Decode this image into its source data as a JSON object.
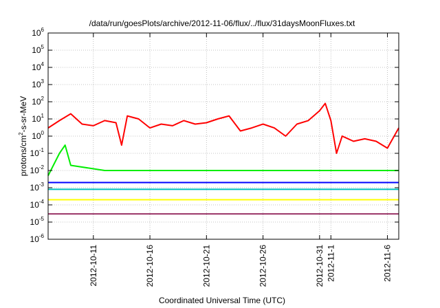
{
  "chart_data": {
    "type": "line",
    "title": "/data/run/goesPlots/archive/2012-11-06/flux/../flux/31daysMoonFluxes.txt",
    "xlabel": "Coordinated Universal Time (UTC)",
    "ylabel": {
      "base": "protons/cm",
      "exp": "2",
      "rest": "-s-sr-MeV"
    },
    "yscale": "log",
    "ylim": [
      1e-06,
      1000000.0
    ],
    "y_ticks": [
      {
        "value": 1e-06,
        "base": "10",
        "exp": "-6"
      },
      {
        "value": 1e-05,
        "base": "10",
        "exp": "-5"
      },
      {
        "value": 0.0001,
        "base": "10",
        "exp": "-4"
      },
      {
        "value": 0.001,
        "base": "10",
        "exp": "-3"
      },
      {
        "value": 0.01,
        "base": "10",
        "exp": "-2"
      },
      {
        "value": 0.1,
        "base": "10",
        "exp": "-1"
      },
      {
        "value": 1,
        "base": "10",
        "exp": "0"
      },
      {
        "value": 10,
        "base": "10",
        "exp": "1"
      },
      {
        "value": 100,
        "base": "10",
        "exp": "2"
      },
      {
        "value": 1000.0,
        "base": "10",
        "exp": "3"
      },
      {
        "value": 10000.0,
        "base": "10",
        "exp": "4"
      },
      {
        "value": 100000.0,
        "base": "10",
        "exp": "5"
      },
      {
        "value": 1000000.0,
        "base": "10",
        "exp": "6"
      }
    ],
    "xlim": [
      "2012-10-07",
      "2012-11-07"
    ],
    "x_ticks": [
      {
        "date": "2012-10-11",
        "label": "2012-10-11"
      },
      {
        "date": "2012-10-16",
        "label": "2012-10-16"
      },
      {
        "date": "2012-10-21",
        "label": "2012-10-21"
      },
      {
        "date": "2012-10-26",
        "label": "2012-10-26"
      },
      {
        "date": "2012-10-31",
        "label": "2012-10-31"
      },
      {
        "date": "2012-11-01",
        "label": "2012-11-1"
      },
      {
        "date": "2012-11-06",
        "label": "2012-11-6"
      }
    ],
    "grid": true,
    "series": [
      {
        "color": "#ff0000",
        "values": [
          [
            "2012-10-07",
            3
          ],
          [
            "2012-10-08",
            8
          ],
          [
            "2012-10-09",
            20
          ],
          [
            "2012-10-10",
            5
          ],
          [
            "2012-10-11",
            4
          ],
          [
            "2012-10-12",
            8
          ],
          [
            "2012-10-13",
            6
          ],
          [
            "2012-10-13.5",
            0.3
          ],
          [
            "2012-10-14",
            15
          ],
          [
            "2012-10-15",
            10
          ],
          [
            "2012-10-16",
            3
          ],
          [
            "2012-10-17",
            5
          ],
          [
            "2012-10-18",
            4
          ],
          [
            "2012-10-19",
            8
          ],
          [
            "2012-10-20",
            5
          ],
          [
            "2012-10-21",
            6
          ],
          [
            "2012-10-22",
            10
          ],
          [
            "2012-10-23",
            15
          ],
          [
            "2012-10-24",
            2
          ],
          [
            "2012-10-25",
            3
          ],
          [
            "2012-10-26",
            5
          ],
          [
            "2012-10-27",
            3
          ],
          [
            "2012-10-28",
            1
          ],
          [
            "2012-10-29",
            5
          ],
          [
            "2012-10-30",
            8
          ],
          [
            "2012-10-31",
            30
          ],
          [
            "2012-10-31.5",
            80
          ],
          [
            "2012-11-01",
            8
          ],
          [
            "2012-11-01.5",
            0.1
          ],
          [
            "2012-11-02",
            1
          ],
          [
            "2012-11-03",
            0.5
          ],
          [
            "2012-11-04",
            0.7
          ],
          [
            "2012-11-05",
            0.5
          ],
          [
            "2012-11-06",
            0.2
          ],
          [
            "2012-11-07",
            3
          ]
        ]
      },
      {
        "color": "#00ee00",
        "values": [
          [
            "2012-10-07",
            0.005
          ],
          [
            "2012-10-08",
            0.1
          ],
          [
            "2012-10-08.5",
            0.3
          ],
          [
            "2012-10-09",
            0.02
          ],
          [
            "2012-10-12",
            0.01
          ],
          [
            "2012-10-17",
            0.01
          ],
          [
            "2012-10-22",
            0.01
          ],
          [
            "2012-10-27",
            0.01
          ],
          [
            "2012-11-01",
            0.01
          ],
          [
            "2012-11-04",
            0.01
          ],
          [
            "2012-11-07",
            0.01
          ]
        ]
      },
      {
        "color": "#0000ff",
        "values": [
          [
            "2012-10-07",
            0.002
          ],
          [
            "2012-10-12",
            0.002
          ],
          [
            "2012-10-17",
            0.002
          ],
          [
            "2012-10-22",
            0.002
          ],
          [
            "2012-10-27",
            0.002
          ],
          [
            "2012-11-01",
            0.002
          ],
          [
            "2012-11-07",
            0.002
          ]
        ]
      },
      {
        "color": "#00bfbf",
        "values": [
          [
            "2012-10-07",
            0.0008
          ],
          [
            "2012-10-12",
            0.0008
          ],
          [
            "2012-10-17",
            0.0008
          ],
          [
            "2012-10-22",
            0.0008
          ],
          [
            "2012-10-27",
            0.0008
          ],
          [
            "2012-11-01",
            0.0008
          ],
          [
            "2012-11-07",
            0.0008
          ]
        ]
      },
      {
        "color": "#ffff00",
        "values": [
          [
            "2012-10-07",
            0.0002
          ],
          [
            "2012-10-12",
            0.0002
          ],
          [
            "2012-10-17",
            0.0002
          ],
          [
            "2012-10-22",
            0.0002
          ],
          [
            "2012-10-27",
            0.0002
          ],
          [
            "2012-11-01",
            0.0002
          ],
          [
            "2012-11-07",
            0.0002
          ]
        ]
      },
      {
        "color": "#993366",
        "values": [
          [
            "2012-10-07",
            3e-05
          ],
          [
            "2012-10-12",
            3e-05
          ],
          [
            "2012-10-17",
            3e-05
          ],
          [
            "2012-10-22",
            3e-05
          ],
          [
            "2012-10-27",
            3e-05
          ],
          [
            "2012-11-01",
            3e-05
          ],
          [
            "2012-11-07",
            3e-05
          ]
        ]
      }
    ]
  }
}
